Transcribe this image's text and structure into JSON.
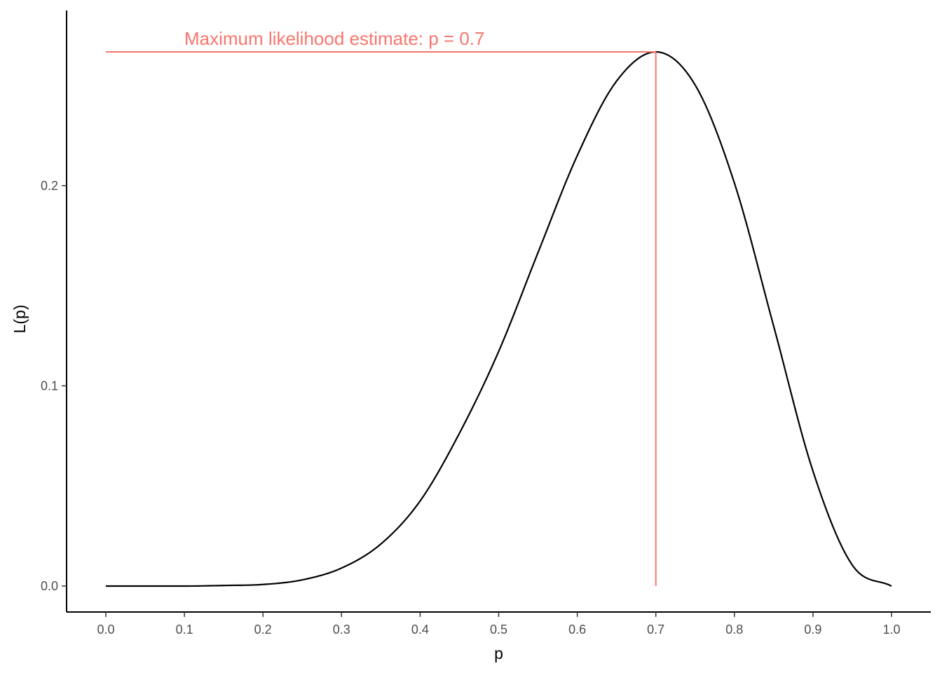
{
  "chart_data": {
    "type": "line",
    "title": "",
    "xlabel": "p",
    "ylabel": "L(p)",
    "xlim": [
      0,
      1
    ],
    "ylim": [
      0,
      0.2668
    ],
    "x_ticks": [
      0.0,
      0.1,
      0.2,
      0.3,
      0.4,
      0.5,
      0.6,
      0.7,
      0.8,
      0.9,
      1.0
    ],
    "x_tick_labels": [
      "0.0",
      "0.1",
      "0.2",
      "0.3",
      "0.4",
      "0.5",
      "0.6",
      "0.7",
      "0.8",
      "0.9",
      "1.0"
    ],
    "y_ticks": [
      0.0,
      0.1,
      0.2
    ],
    "y_tick_labels": [
      "0.0",
      "0.1",
      "0.2"
    ],
    "grid": false,
    "series": [
      {
        "color": "#000000",
        "x": [
          0.0,
          0.05,
          0.1,
          0.15,
          0.2,
          0.25,
          0.3,
          0.35,
          0.4,
          0.45,
          0.5,
          0.55,
          0.6,
          0.65,
          0.7,
          0.75,
          0.8,
          0.85,
          0.9,
          0.95,
          1.0
        ],
        "y": [
          0.0,
          0.0,
          0.0,
          0.0003,
          0.0008,
          0.0031,
          0.009,
          0.021,
          0.0425,
          0.0763,
          0.1172,
          0.1665,
          0.215,
          0.2522,
          0.2668,
          0.2503,
          0.2013,
          0.1298,
          0.0574,
          0.0105,
          0.0
        ]
      }
    ],
    "annotations": {
      "mle_p": 0.7,
      "mle_value": 0.2668,
      "color": "#f8766d",
      "label": "Maximum likelihood estimate: p = 0.7"
    }
  }
}
